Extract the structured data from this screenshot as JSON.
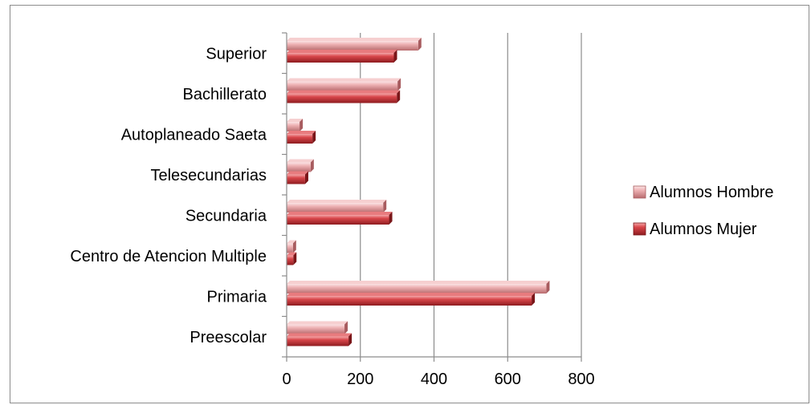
{
  "chart_data": {
    "type": "bar",
    "orientation": "horizontal",
    "categories": [
      "Superior",
      "Bachillerato",
      "Autoplaneado Saeta",
      "Telesecundarias",
      "Secundaria",
      "Centro de Atencion Multiple",
      "Primaria",
      "Preescolar"
    ],
    "series": [
      {
        "name": "Alumnos Hombre",
        "values": [
          357,
          301,
          35,
          65,
          262,
          17,
          705,
          157
        ],
        "color": "#e8a0a3"
      },
      {
        "name": "Alumnos Mujer",
        "values": [
          291,
          299,
          70,
          50,
          278,
          18,
          665,
          168
        ],
        "color": "#c43a3e"
      }
    ],
    "xlim": [
      0,
      800
    ],
    "x_ticks": [
      0,
      200,
      400,
      600,
      800
    ],
    "x_tick_labels": [
      "0",
      "200",
      "400",
      "600",
      "800"
    ],
    "xlabel": "",
    "ylabel": "",
    "title": "",
    "grid": "vertical",
    "legend_position": "right"
  }
}
